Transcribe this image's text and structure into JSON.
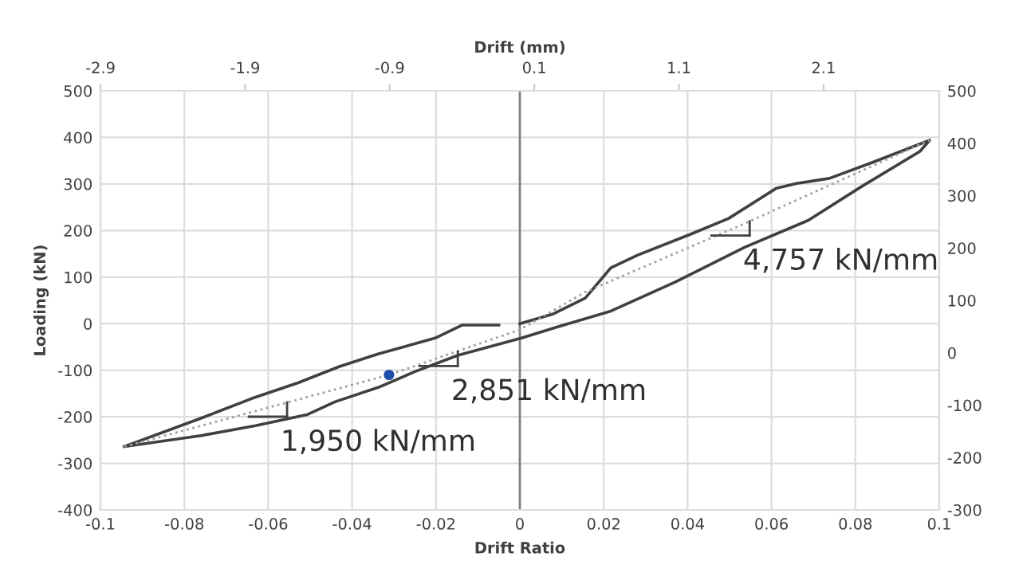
{
  "chart_data": {
    "type": "line",
    "xlabel": "Drift Ratio",
    "ylabel": "Loading (kN)",
    "x2label": "Drift (mm)",
    "xlim": [
      -0.1,
      0.1
    ],
    "xticks": [
      -0.1,
      -0.08,
      -0.06,
      -0.04,
      -0.02,
      0,
      0.02,
      0.04,
      0.06,
      0.08,
      0.1
    ],
    "ylim": [
      -400,
      500
    ],
    "yticks": [
      -400,
      -300,
      -200,
      -100,
      0,
      100,
      200,
      300,
      400,
      500
    ],
    "y2lim": [
      -300,
      500
    ],
    "y2ticks": [
      -300,
      -200,
      -100,
      0,
      100,
      200,
      300,
      400,
      500
    ],
    "x2lim": [
      -2.9,
      2.9
    ],
    "x2ticks": [
      -2.9,
      -1.9,
      -0.9,
      0.1,
      1.1,
      2.1
    ],
    "grid": true,
    "legend": false,
    "ref_lines": [
      {
        "axis": "x",
        "value": 0,
        "color": "#808080"
      }
    ],
    "series": [
      {
        "color": "#404040",
        "line_style": "solid",
        "marker": "none",
        "x": [
          -0.0943,
          -0.0757,
          -0.064,
          -0.0529,
          -0.043,
          -0.0338,
          -0.0202,
          -0.0137,
          -0.005,
          -0.0025,
          0,
          0.008,
          0.0156,
          0.0217,
          0.028,
          0.0407,
          0.0498,
          0.0612,
          0.066,
          0.0738,
          0.084,
          0.0977,
          0.0954,
          0.0814,
          0.0688,
          0.0536,
          0.037,
          0.0217,
          0.009,
          0.0004,
          -0.0148,
          -0.025,
          -0.0338,
          -0.0441,
          -0.0506,
          -0.063,
          -0.0757,
          -0.0943
        ],
        "values": [
          -264,
          -202,
          -161,
          -127,
          -92,
          -65,
          -31,
          -3,
          -3,
          null,
          0,
          21,
          55,
          120,
          147,
          192,
          226,
          291,
          301,
          312,
          346,
          394,
          370,
          294,
          222,
          164,
          89,
          27,
          -7,
          -31,
          -68,
          -103,
          -137,
          -168,
          -195,
          -219,
          -240,
          -264
        ]
      },
      {
        "color": "#a0a0a0",
        "line_style": "dotted",
        "marker": "none",
        "x": [
          -0.0943,
          -0.0312,
          0,
          0.0156,
          0.0536,
          0.0977
        ],
        "values": [
          -264,
          -110,
          -13,
          68,
          215,
          394
        ]
      },
      {
        "type": "scatter",
        "color": "#1f4fa8",
        "marker": "circle",
        "x": [
          -0.0312
        ],
        "values": [
          -110
        ]
      }
    ],
    "annotations": [
      {
        "text": "1,950 kN/mm",
        "x": -0.0555,
        "y": -169
      },
      {
        "text": "2,851 kN/mm",
        "x": -0.0148,
        "y": -60
      },
      {
        "text": "4,757 kN/mm",
        "x": 0.0548,
        "y": 220
      }
    ]
  }
}
